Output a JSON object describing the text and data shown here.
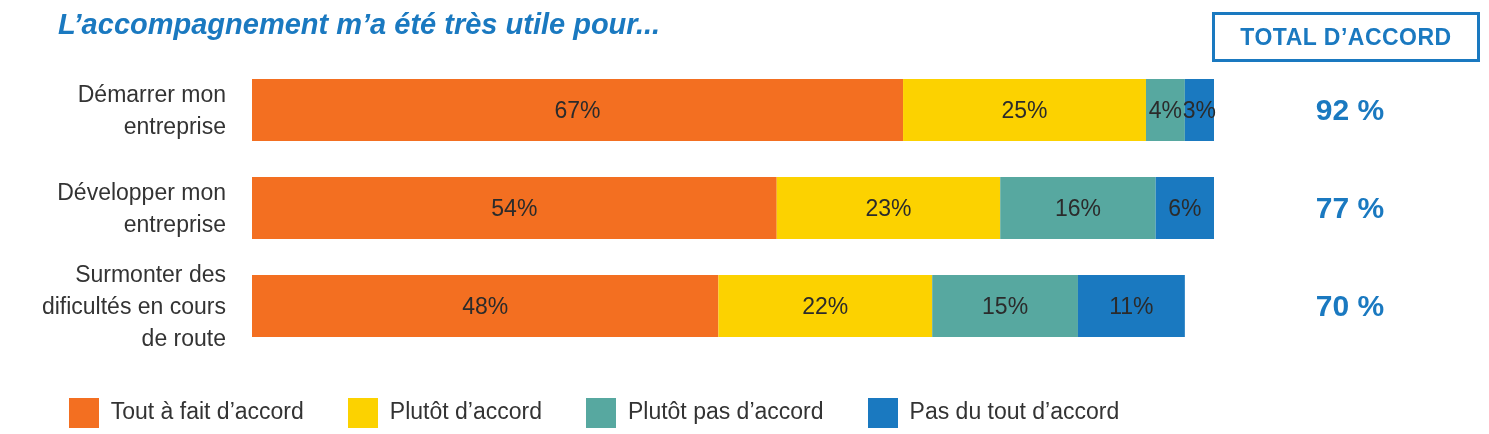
{
  "chart_data": {
    "type": "bar",
    "orientation": "horizontal",
    "stacked": true,
    "title": "L’accompagnement m’a été très utile pour...",
    "categories": [
      "Démarrer mon entreprise",
      "Développer mon entreprise",
      "Surmonter des dificultés en cours de route"
    ],
    "series": [
      {
        "name": "Tout à fait d’accord",
        "color": "#f36f21",
        "values": [
          67,
          54,
          48
        ],
        "value_labels": [
          "67%",
          "54%",
          "48%"
        ]
      },
      {
        "name": "Plutôt d’accord",
        "color": "#fcd200",
        "values": [
          25,
          23,
          22
        ],
        "value_labels": [
          "25%",
          "23%",
          "22%"
        ]
      },
      {
        "name": "Plutôt pas d’accord",
        "color": "#57a8a0",
        "values": [
          4,
          16,
          15
        ],
        "value_labels": [
          "4%",
          "16%",
          "15%"
        ]
      },
      {
        "name": "Pas du tout d’accord",
        "color": "#1a79c0",
        "values": [
          3,
          6,
          11
        ],
        "value_labels": [
          "3%",
          "6%",
          "11%"
        ]
      }
    ],
    "tick_labels": "y",
    "legend": "bottom",
    "annotations": [
      "TOTAL D’ACCORD",
      "92 %",
      "77 %",
      "70 %"
    ]
  }
}
